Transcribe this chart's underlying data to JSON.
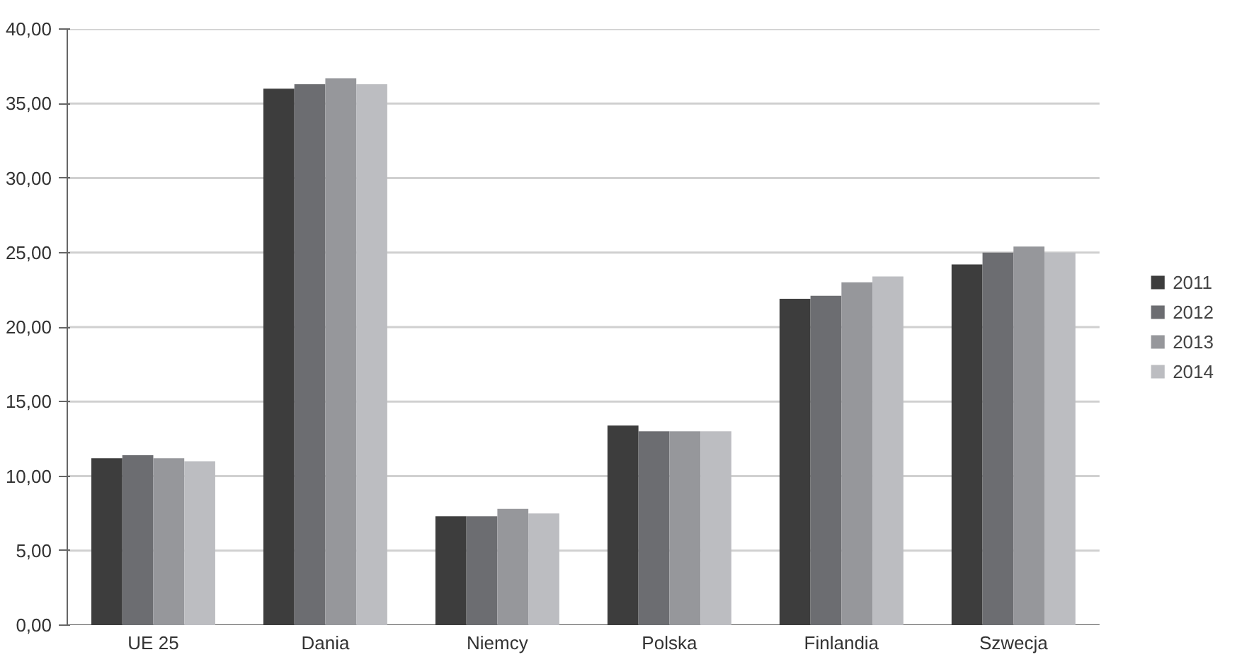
{
  "chart_data": {
    "type": "bar",
    "categories": [
      "UE 25",
      "Dania",
      "Niemcy",
      "Polska",
      "Finlandia",
      "Szwecja"
    ],
    "series": [
      {
        "name": "2011",
        "color": "#3d3d3d",
        "values": [
          11.2,
          36.0,
          7.3,
          13.4,
          21.9,
          24.2
        ]
      },
      {
        "name": "2012",
        "color": "#6c6d71",
        "values": [
          11.4,
          36.3,
          7.3,
          13.0,
          22.1,
          25.0
        ]
      },
      {
        "name": "2013",
        "color": "#96979b",
        "values": [
          11.2,
          36.7,
          7.8,
          13.0,
          23.0,
          25.4
        ]
      },
      {
        "name": "2014",
        "color": "#bcbdc1",
        "values": [
          11.0,
          36.3,
          7.5,
          13.0,
          23.4,
          25.0
        ]
      }
    ],
    "ylim": [
      0,
      40
    ],
    "yticks": [
      {
        "value": 0,
        "label": "0,00"
      },
      {
        "value": 5,
        "label": "5,00"
      },
      {
        "value": 10,
        "label": "10,00"
      },
      {
        "value": 15,
        "label": "15,00"
      },
      {
        "value": 20,
        "label": "20,00"
      },
      {
        "value": 25,
        "label": "25,00"
      },
      {
        "value": 30,
        "label": "30,00"
      },
      {
        "value": 35,
        "label": "35,00"
      },
      {
        "value": 40,
        "label": "40,00"
      }
    ],
    "grid": "y",
    "legend": "right"
  }
}
